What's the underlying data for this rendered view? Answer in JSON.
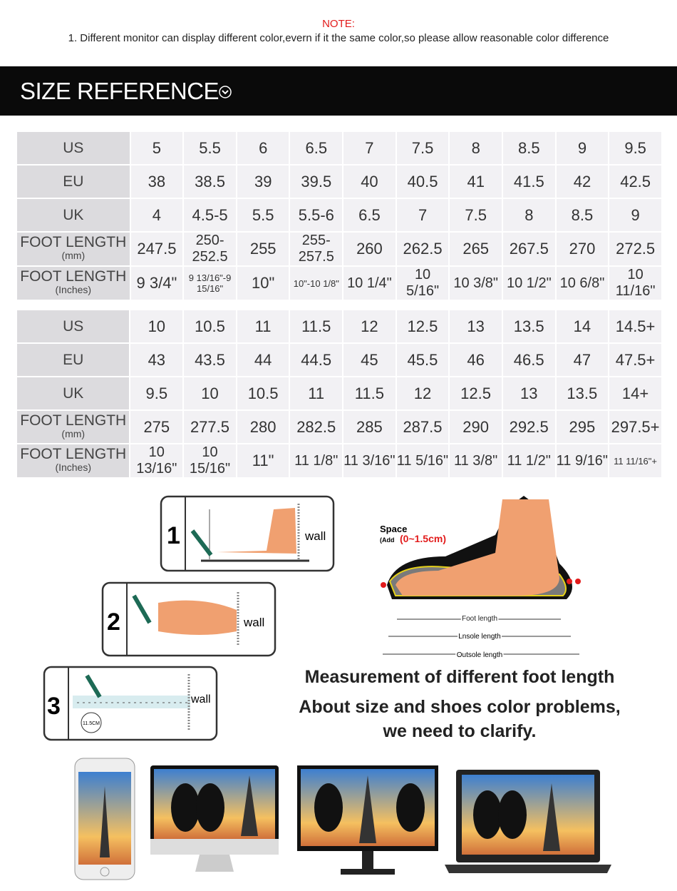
{
  "note": {
    "title": "NOTE:",
    "text": "1. Different monitor can display different color,evern if it the same color,so please allow reasonable color difference"
  },
  "header": {
    "title": "SIZE REFERENCE",
    "icon": "chevron-down-circle-icon"
  },
  "tables": [
    {
      "rows": [
        {
          "label": "US",
          "sub": "",
          "cells": [
            "5",
            "5.5",
            "6",
            "6.5",
            "7",
            "7.5",
            "8",
            "8.5",
            "9",
            "9.5"
          ]
        },
        {
          "label": "EU",
          "sub": "",
          "cells": [
            "38",
            "38.5",
            "39",
            "39.5",
            "40",
            "40.5",
            "41",
            "41.5",
            "42",
            "42.5"
          ]
        },
        {
          "label": "UK",
          "sub": "",
          "cells": [
            "4",
            "4.5-5",
            "5.5",
            "5.5-6",
            "6.5",
            "7",
            "7.5",
            "8",
            "8.5",
            "9"
          ]
        },
        {
          "label": "FOOT LENGTH",
          "sub": "(mm)",
          "cells": [
            "247.5",
            "250-252.5",
            "255",
            "255-257.5",
            "260",
            "262.5",
            "265",
            "267.5",
            "270",
            "272.5"
          ]
        },
        {
          "label": "FOOT LENGTH",
          "sub": "(Inches)",
          "cells": [
            "9 3/4\"",
            "9 13/16\"-9 15/16\"",
            "10\"",
            "10\"-10 1/8\"",
            "10 1/4\"",
            "10 5/16\"",
            "10 3/8\"",
            "10 1/2\"",
            "10 6/8\"",
            "10 11/16\""
          ]
        }
      ]
    },
    {
      "rows": [
        {
          "label": "US",
          "sub": "",
          "cells": [
            "10",
            "10.5",
            "11",
            "11.5",
            "12",
            "12.5",
            "13",
            "13.5",
            "14",
            "14.5+"
          ]
        },
        {
          "label": "EU",
          "sub": "",
          "cells": [
            "43",
            "43.5",
            "44",
            "44.5",
            "45",
            "45.5",
            "46",
            "46.5",
            "47",
            "47.5+"
          ]
        },
        {
          "label": "UK",
          "sub": "",
          "cells": [
            "9.5",
            "10",
            "10.5",
            "11",
            "11.5",
            "12",
            "12.5",
            "13",
            "13.5",
            "14+"
          ]
        },
        {
          "label": "FOOT LENGTH",
          "sub": "(mm)",
          "cells": [
            "275",
            "277.5",
            "280",
            "282.5",
            "285",
            "287.5",
            "290",
            "292.5",
            "295",
            "297.5+"
          ]
        },
        {
          "label": "FOOT LENGTH",
          "sub": "(Inches)",
          "cells": [
            "10 13/16\"",
            "10 15/16\"",
            "11\"",
            "11 1/8\"",
            "11 3/16\"",
            "11 5/16\"",
            "11 3/8\"",
            "11 1/2\"",
            "11 9/16\"",
            "11 11/16\"+"
          ]
        }
      ]
    }
  ],
  "steps": [
    {
      "num": "1",
      "wall": "wall"
    },
    {
      "num": "2",
      "wall": "wall"
    },
    {
      "num": "3",
      "wall": "wall",
      "ruler": "11.5CM"
    }
  ],
  "shoe_diagram": {
    "space": "Space",
    "add_prefix": "(Add",
    "add_range": "(0~1.5cm)",
    "foot_length": "Foot length",
    "insole_length": "Lnsole length",
    "outsole_length": "Outsole length"
  },
  "caption": {
    "line1": "Measurement of different foot length",
    "line2": "About size and shoes color problems,",
    "line3": "we need to clarify."
  },
  "colors": {
    "note": "#e21b1b",
    "band": "#0a0a0a",
    "header_cell": "#dcdbde",
    "cell": "#f2f1f4",
    "foot": "#f0a070"
  }
}
